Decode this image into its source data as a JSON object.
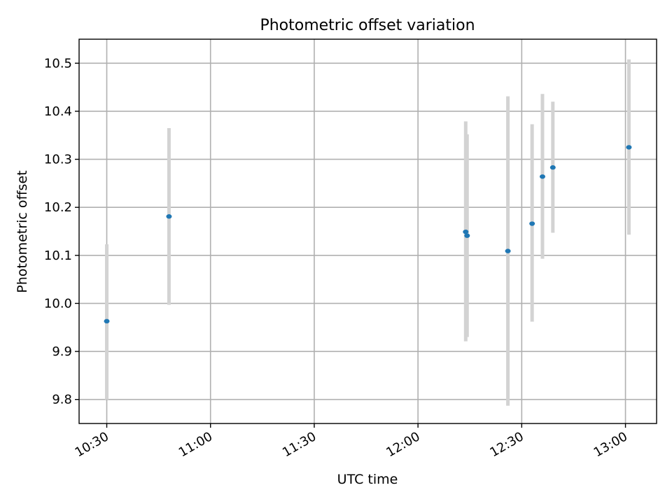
{
  "chart_data": {
    "type": "scatter",
    "title": "Photometric offset variation",
    "xlabel": "UTC time",
    "ylabel": "Photometric offset",
    "x_ticks": [
      "10:30",
      "11:00",
      "11:30",
      "12:00",
      "12:30",
      "13:00"
    ],
    "y_ticks": [
      "9.8",
      "9.9",
      "10.0",
      "10.1",
      "10.2",
      "10.3",
      "10.4",
      "10.5"
    ],
    "xlim": [
      "10:22",
      "13:09"
    ],
    "ylim": [
      9.75,
      10.55
    ],
    "grid": true,
    "colors": {
      "point": "#1f77b4",
      "errorbar": "#d3d3d3"
    },
    "points": [
      {
        "x": "10:30",
        "y": 9.963,
        "y_low": 9.8,
        "y_high": 10.123
      },
      {
        "x": "10:48",
        "y": 10.181,
        "y_low": 9.997,
        "y_high": 10.365
      },
      {
        "x": "12:14",
        "y": 10.149,
        "y_low": 9.921,
        "y_high": 10.379
      },
      {
        "x": "12:14",
        "y": 10.141,
        "y_low": 9.93,
        "y_high": 10.352
      },
      {
        "x": "12:26",
        "y": 10.109,
        "y_low": 9.787,
        "y_high": 10.431
      },
      {
        "x": "12:33",
        "y": 10.166,
        "y_low": 9.962,
        "y_high": 10.373
      },
      {
        "x": "12:36",
        "y": 10.264,
        "y_low": 10.093,
        "y_high": 10.436
      },
      {
        "x": "12:39",
        "y": 10.283,
        "y_low": 10.147,
        "y_high": 10.42
      },
      {
        "x": "13:01",
        "y": 10.325,
        "y_low": 10.143,
        "y_high": 10.508
      }
    ]
  }
}
